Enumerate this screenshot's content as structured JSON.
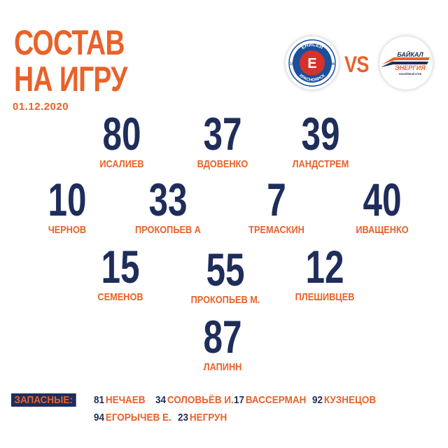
{
  "title_line1": "СОСТАВ",
  "title_line2": "НА ИГРУ",
  "date": "01.12.2020",
  "vs": "VS",
  "home_logo": {
    "text_top": "ЕНИСЕЙ",
    "text_bottom": "КРАСНОЯРСК",
    "year_left": "19",
    "year_right": "34",
    "letter": "Е"
  },
  "away_logo": {
    "line1": "БАЙКАЛ",
    "line2": "ЭНЕРГИЯ",
    "line3": "ХОККЕЙНЫЙ КЛУБ"
  },
  "colors": {
    "accent": "#e8622a",
    "navy": "#1f2d5a",
    "home_red": "#d6322c",
    "home_blue": "#1b4f9c"
  },
  "players": [
    {
      "number": "80",
      "name": "ИСАЛИЕВ"
    },
    {
      "number": "37",
      "name": "ВДОВЕНКО"
    },
    {
      "number": "39",
      "name": "ЛАНДСТРЕМ"
    },
    {
      "number": "10",
      "name": "ЧЕРНОВ"
    },
    {
      "number": "33",
      "name": "ПРОКОПЬЕВ А"
    },
    {
      "number": "7",
      "name": "ТРЕМАСКИН"
    },
    {
      "number": "40",
      "name": "ИВАЩЕНКО"
    },
    {
      "number": "15",
      "name": "СЕМЕНОВ"
    },
    {
      "number": "55",
      "name": "ПРОКОПЬЕВ М."
    },
    {
      "number": "12",
      "name": "ПЛЕШИВЦЕВ"
    },
    {
      "number": "87",
      "name": "ЛАПИНН"
    }
  ],
  "subs_label": "ЗАПАСНЫЕ:",
  "subs": [
    {
      "number": "81",
      "name": "НЕЧАЕВ"
    },
    {
      "number": "34",
      "name": "СОЛОВЬЁВ И."
    },
    {
      "number": "17",
      "name": "ВАССЕРМАН"
    },
    {
      "number": "92",
      "name": "КУЗНЕЦОВ"
    },
    {
      "number": "94",
      "name": "ЕГОРЫЧЕВ Е."
    },
    {
      "number": "23",
      "name": "НЕГРУН"
    }
  ]
}
